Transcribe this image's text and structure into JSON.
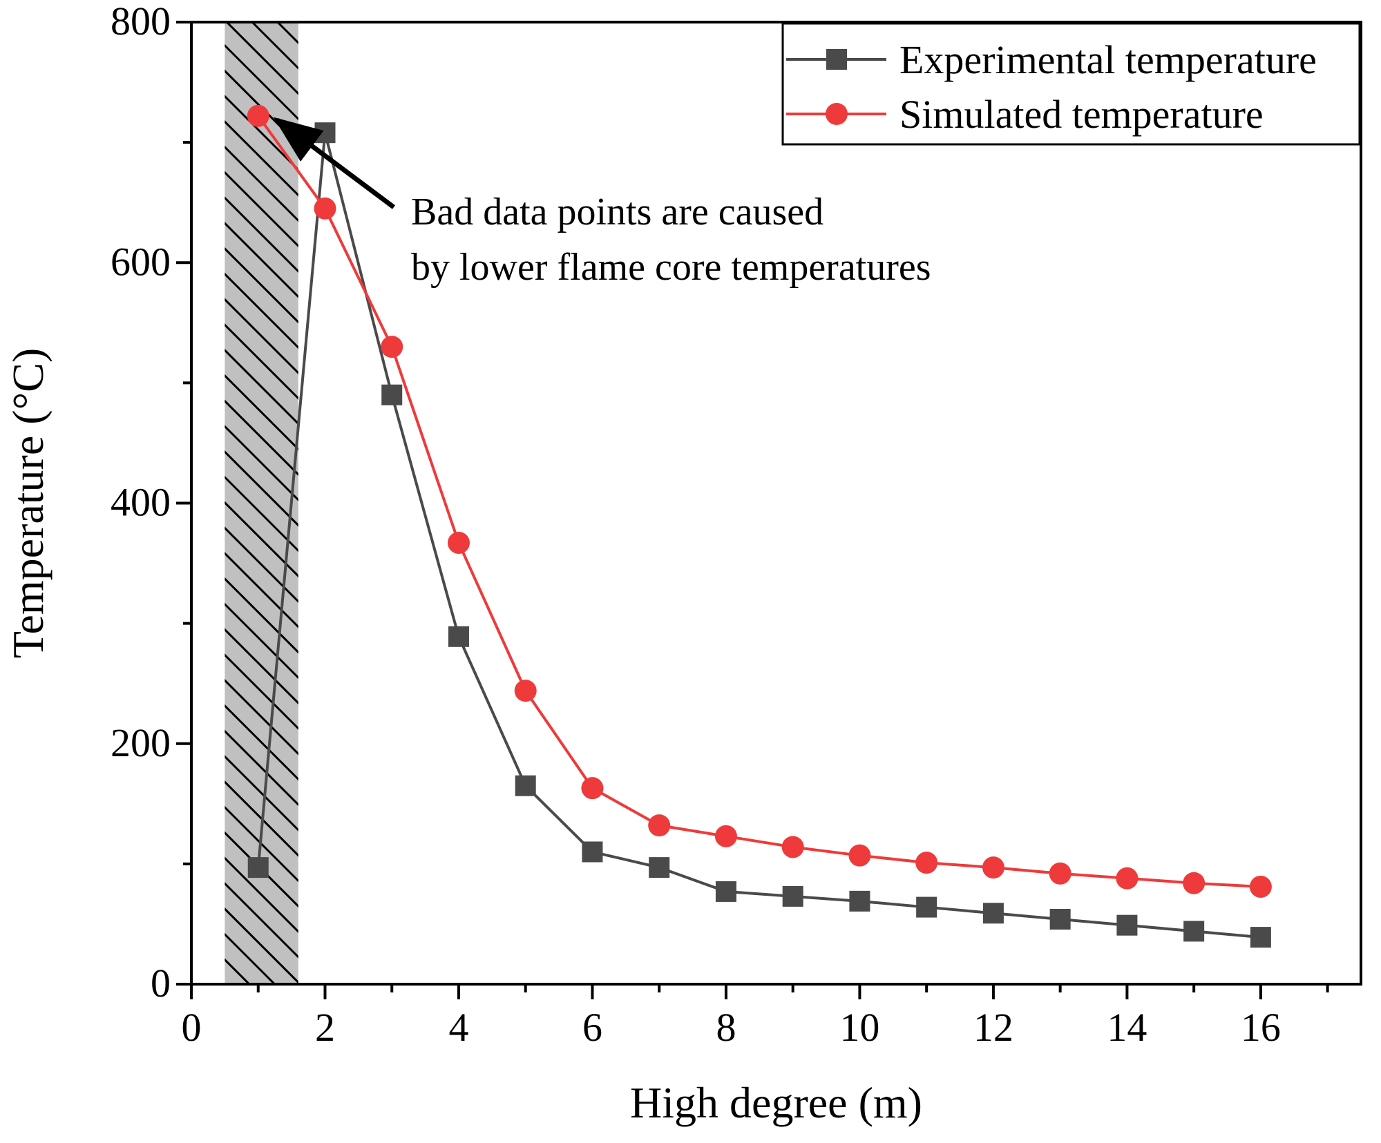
{
  "chart_data": {
    "type": "line",
    "title": "",
    "xlabel": "High degree (m)",
    "ylabel": "Temperature (°C)",
    "xlim": [
      0,
      17.5
    ],
    "ylim": [
      0,
      800
    ],
    "x_ticks": [
      0,
      2,
      4,
      6,
      8,
      10,
      12,
      14,
      16
    ],
    "x_tick_labels": [
      "0",
      "2",
      "4",
      "6",
      "8",
      "10",
      "12",
      "14",
      "16"
    ],
    "y_ticks": [
      0,
      200,
      400,
      600,
      800
    ],
    "y_tick_labels": [
      "0",
      "200",
      "400",
      "600",
      "800"
    ],
    "grid": false,
    "legend_position": "top-right",
    "series": [
      {
        "name": "Experimental temperature",
        "marker": "square",
        "color": "#4a4a4a",
        "x": [
          1,
          2,
          3,
          4,
          5,
          6,
          7,
          8,
          9,
          10,
          11,
          12,
          13,
          14,
          15,
          16
        ],
        "values": [
          97,
          708,
          490,
          289,
          165,
          110,
          97,
          77,
          73,
          69,
          64,
          59,
          54,
          49,
          44,
          39
        ]
      },
      {
        "name": "Simulated temperature",
        "marker": "circle",
        "color": "#ee3a3a",
        "x": [
          1,
          2,
          3,
          4,
          5,
          6,
          7,
          8,
          9,
          10,
          11,
          12,
          13,
          14,
          15,
          16
        ],
        "values": [
          722,
          645,
          530,
          367,
          244,
          163,
          132,
          123,
          114,
          107,
          101,
          97,
          92,
          88,
          84,
          81
        ]
      }
    ],
    "shaded_region": {
      "x_range": [
        0.5,
        1.6
      ],
      "pattern": "hatched"
    },
    "annotation": {
      "lines": [
        "Bad data points are caused",
        "by lower flame core temperatures"
      ],
      "arrow_target": {
        "x": 1.1,
        "y": 722
      }
    }
  }
}
